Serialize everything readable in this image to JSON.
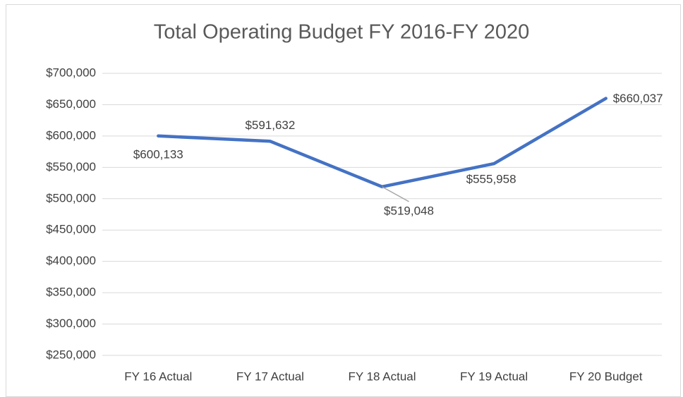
{
  "chart_data": {
    "type": "line",
    "title": "Total Operating Budget FY 2016-FY 2020",
    "categories": [
      "FY 16 Actual",
      "FY 17 Actual",
      "FY 18 Actual",
      "FY 19 Actual",
      "FY 20 Budget"
    ],
    "values": [
      600133,
      591632,
      519048,
      555958,
      660037
    ],
    "value_labels": [
      "$600,133",
      "$591,632",
      "$519,048",
      "$555,958",
      "$660,037"
    ],
    "color": "#4472c4",
    "ylim": [
      250000,
      700000
    ],
    "yticks": [
      {
        "value": 250000,
        "label": "$250,000"
      },
      {
        "value": 300000,
        "label": "$300,000"
      },
      {
        "value": 350000,
        "label": "$350,000"
      },
      {
        "value": 400000,
        "label": "$400,000"
      },
      {
        "value": 450000,
        "label": "$450,000"
      },
      {
        "value": 500000,
        "label": "$500,000"
      },
      {
        "value": 550000,
        "label": "$550,000"
      },
      {
        "value": 600000,
        "label": "$600,000"
      },
      {
        "value": 650000,
        "label": "$650,000"
      },
      {
        "value": 700000,
        "label": "$700,000"
      }
    ],
    "grid": true
  }
}
